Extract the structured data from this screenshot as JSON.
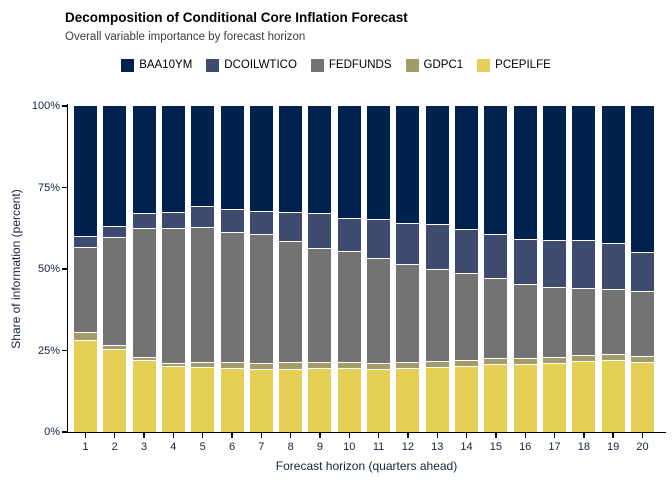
{
  "title": "Decomposition of Conditional Core Inflation Forecast",
  "subtitle": "Overall variable importance by forecast horizon",
  "legend": {
    "items": [
      {
        "label": "BAA10YM",
        "color": "#01214f"
      },
      {
        "label": "DCOILWTICO",
        "color": "#3e4a6e"
      },
      {
        "label": "FEDFUNDS",
        "color": "#737373"
      },
      {
        "label": "GDPC1",
        "color": "#a39b69"
      },
      {
        "label": "PCEPILFE",
        "color": "#e6cf55"
      }
    ]
  },
  "axes": {
    "y": {
      "title": "Share of information (percent)",
      "ticks": [
        {
          "label": "0%",
          "value": 0
        },
        {
          "label": "25%",
          "value": 25
        },
        {
          "label": "50%",
          "value": 50
        },
        {
          "label": "75%",
          "value": 75
        },
        {
          "label": "100%",
          "value": 100
        }
      ]
    },
    "x": {
      "title": "Forecast horizon (quarters ahead)",
      "ticks": [
        "1",
        "2",
        "3",
        "4",
        "5",
        "6",
        "7",
        "8",
        "9",
        "10",
        "11",
        "12",
        "13",
        "14",
        "15",
        "16",
        "17",
        "18",
        "19",
        "20"
      ]
    }
  },
  "chart_data": {
    "type": "bar",
    "stacked": true,
    "title": "Decomposition of Conditional Core Inflation Forecast",
    "subtitle": "Overall variable importance by forecast horizon",
    "xlabel": "Forecast horizon (quarters ahead)",
    "ylabel": "Share of information (percent)",
    "ylim": [
      0,
      100
    ],
    "unit": "percent share of information",
    "grid": false,
    "legend_position": "top",
    "categories": [
      1,
      2,
      3,
      4,
      5,
      6,
      7,
      8,
      9,
      10,
      11,
      12,
      13,
      14,
      15,
      16,
      17,
      18,
      19,
      20
    ],
    "stack_order_bottom_to_top": [
      "PCEPILFE",
      "GDPC1",
      "FEDFUNDS",
      "DCOILWTICO",
      "BAA10YM"
    ],
    "series": [
      {
        "name": "PCEPILFE",
        "color": "#e6cf55",
        "values": [
          28.2,
          25.5,
          22.1,
          20.3,
          19.9,
          19.6,
          19.3,
          19.4,
          19.6,
          19.6,
          19.4,
          19.7,
          20.0,
          20.3,
          20.8,
          20.8,
          21.2,
          21.8,
          22.1,
          21.6
        ]
      },
      {
        "name": "GDPC1",
        "color": "#a39b69",
        "values": [
          2.4,
          1.3,
          0.9,
          0.9,
          1.5,
          2.0,
          1.9,
          2.0,
          1.8,
          1.8,
          1.9,
          1.9,
          1.9,
          1.9,
          2.0,
          2.0,
          1.9,
          1.9,
          1.9,
          1.8
        ]
      },
      {
        "name": "FEDFUNDS",
        "color": "#737373",
        "values": [
          26.3,
          32.9,
          39.5,
          41.3,
          41.4,
          39.9,
          39.5,
          37.1,
          35.0,
          34.0,
          32.1,
          29.9,
          28.1,
          26.5,
          24.4,
          22.6,
          21.5,
          20.5,
          20.0,
          19.9
        ]
      },
      {
        "name": "DCOILWTICO",
        "color": "#3e4a6e",
        "values": [
          3.3,
          3.6,
          4.6,
          5.1,
          6.6,
          6.9,
          7.0,
          9.1,
          10.7,
          10.4,
          11.9,
          12.5,
          13.8,
          13.7,
          13.7,
          13.8,
          14.3,
          14.7,
          13.9,
          11.8
        ]
      },
      {
        "name": "BAA10YM",
        "color": "#01214f",
        "values": [
          39.8,
          36.7,
          32.9,
          32.4,
          30.6,
          31.6,
          32.3,
          32.4,
          32.9,
          34.2,
          34.7,
          36.0,
          36.2,
          37.6,
          39.1,
          40.8,
          41.1,
          41.1,
          42.1,
          44.9
        ]
      }
    ]
  }
}
